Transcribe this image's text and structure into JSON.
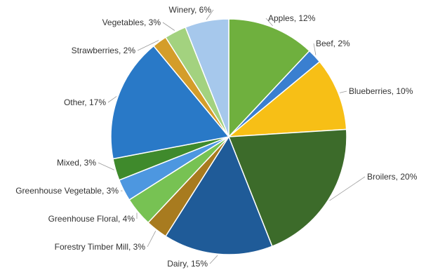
{
  "chart_data": {
    "type": "pie",
    "title": "",
    "start_angle_deg": 0,
    "direction": "clockwise",
    "slices": [
      {
        "label": "Apples",
        "value": 12,
        "display": "Apples, 12%",
        "color": "#6fb03e"
      },
      {
        "label": "Beef",
        "value": 2,
        "display": "Beef, 2%",
        "color": "#3a7fd0"
      },
      {
        "label": "Blueberries",
        "value": 10,
        "display": "Blueberries, 10%",
        "color": "#f7bf16"
      },
      {
        "label": "Broilers",
        "value": 20,
        "display": "Broilers, 20%",
        "color": "#3c6b2a"
      },
      {
        "label": "Dairy",
        "value": 15,
        "display": "Dairy, 15%",
        "color": "#1f5b98"
      },
      {
        "label": "Forestry Timber Mill",
        "value": 3,
        "display": "Forestry Timber Mill, 3%",
        "color": "#a87b1f"
      },
      {
        "label": "Greenhouse Floral",
        "value": 4,
        "display": "Greenhouse Floral, 4%",
        "color": "#77c253"
      },
      {
        "label": "Greenhouse Vegetable",
        "value": 3,
        "display": "Greenhouse Vegetable, 3%",
        "color": "#4d97e0"
      },
      {
        "label": "Mixed",
        "value": 3,
        "display": "Mixed, 3%",
        "color": "#3f8a2c"
      },
      {
        "label": "Other",
        "value": 17,
        "display": "Other, 17%",
        "color": "#2979c7"
      },
      {
        "label": "Strawberries",
        "value": 2,
        "display": "Strawberries, 2%",
        "color": "#d49d2a"
      },
      {
        "label": "Vegetables",
        "value": 3,
        "display": "Vegetables, 3%",
        "color": "#a3d27f"
      },
      {
        "label": "Winery",
        "value": 6,
        "display": "Winery, 6%",
        "color": "#a6c8ec"
      }
    ]
  }
}
